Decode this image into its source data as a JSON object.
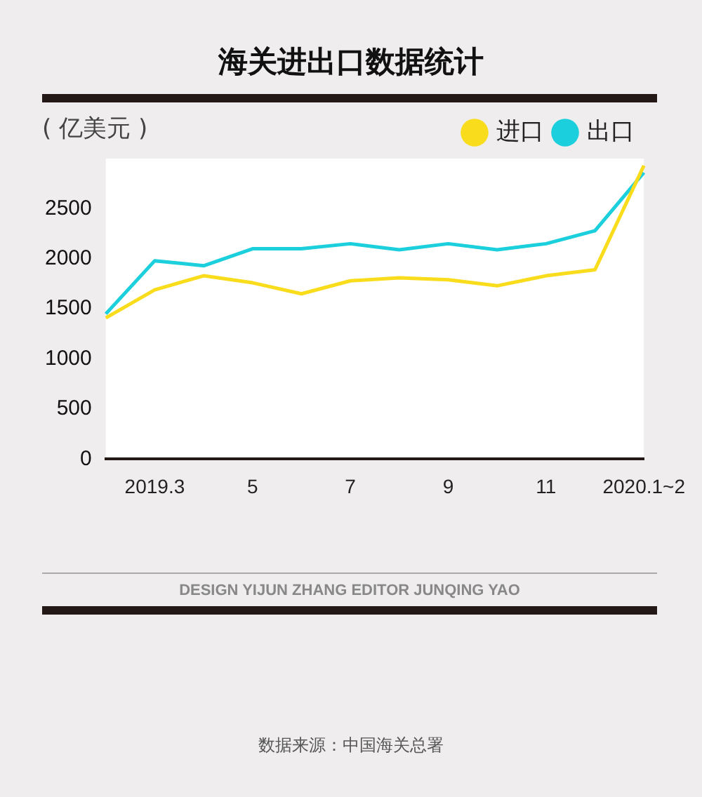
{
  "chart_data": {
    "type": "line",
    "title": "海关进出口数据统计",
    "ylabel": "( 亿美元 )",
    "categories": [
      null,
      "2019.3",
      null,
      "5",
      null,
      "7",
      null,
      "9",
      null,
      "11",
      null,
      "2020.1~2"
    ],
    "series": [
      {
        "name": "进口",
        "color": "#f9dc1c",
        "values": [
          1410,
          1690,
          1830,
          1760,
          1650,
          1780,
          1810,
          1790,
          1730,
          1830,
          1890,
          2930
        ]
      },
      {
        "name": "出口",
        "color": "#1ccfdc",
        "values": [
          1450,
          1980,
          1930,
          2100,
          2100,
          2150,
          2090,
          2150,
          2090,
          2150,
          2280,
          2860
        ]
      }
    ],
    "ylim": [
      0,
      3000
    ],
    "yticks": [
      0,
      500,
      1000,
      1500,
      2000,
      2500
    ],
    "grid": false,
    "legend": "top right",
    "marker": "none",
    "line_style": "solid",
    "annotations": [
      "DESIGN YIJUN ZHANG    EDITOR JUNQING YAO",
      "数据来源：中国海关总署"
    ]
  }
}
